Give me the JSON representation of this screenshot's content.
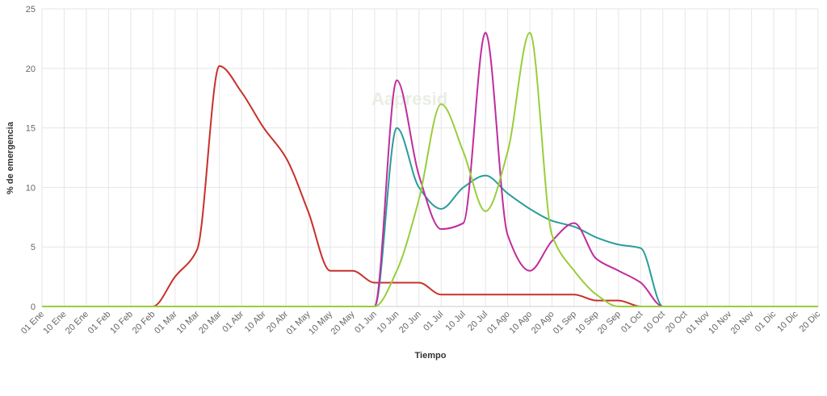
{
  "chart_data": {
    "type": "line",
    "x_label": "Tiempo",
    "y_label": "% de emergencia",
    "watermark": "Aapresid",
    "categories": [
      "01 Ene",
      "10 Ene",
      "20 Ene",
      "01 Feb",
      "10 Feb",
      "20 Feb",
      "01 Mar",
      "10 Mar",
      "20 Mar",
      "01 Abr",
      "10 Abr",
      "20 Abr",
      "01 May",
      "10 May",
      "20 May",
      "01 Jun",
      "10 Jun",
      "20 Jun",
      "01 Jul",
      "10 Jul",
      "20 Jul",
      "01 Ago",
      "10 Ago",
      "20 Ago",
      "01 Sep",
      "10 Sep",
      "20 Sep",
      "01 Oct",
      "10 Oct",
      "20 Oct",
      "01 Nov",
      "10 Nov",
      "20 Nov",
      "01 Dic",
      "10 Dic",
      "20 Dic"
    ],
    "series": [
      {
        "color": "#c8302a",
        "values": [
          0,
          0,
          0,
          0,
          0,
          0,
          2.5,
          4.8,
          20.2,
          18,
          15,
          12.5,
          8,
          3,
          3,
          2,
          2,
          2,
          1,
          1,
          1,
          1,
          1,
          1,
          1,
          0.5,
          0.5,
          0,
          0,
          0,
          0,
          0,
          0,
          0,
          0,
          0
        ]
      },
      {
        "color": "#2a9d9a",
        "values": [
          0,
          0,
          0,
          0,
          0,
          0,
          0,
          0,
          0,
          0,
          0,
          0,
          0,
          0,
          0,
          0,
          15,
          10,
          8.2,
          10,
          11,
          9.5,
          8.2,
          7.2,
          6.7,
          5.8,
          5.2,
          4.9,
          0,
          0,
          0,
          0,
          0,
          0,
          0,
          0
        ]
      },
      {
        "color": "#c02c9c",
        "values": [
          0,
          0,
          0,
          0,
          0,
          0,
          0,
          0,
          0,
          0,
          0,
          0,
          0,
          0,
          0,
          0,
          19,
          11,
          6.5,
          7,
          23,
          6,
          3,
          5.5,
          7,
          4,
          3,
          2,
          0,
          0,
          0,
          0,
          0,
          0,
          0,
          0
        ]
      },
      {
        "color": "#9acd3c",
        "values": [
          0,
          0,
          0,
          0,
          0,
          0,
          0,
          0,
          0,
          0,
          0,
          0,
          0,
          0,
          0,
          0,
          3,
          9,
          17,
          13,
          8,
          13,
          23,
          6,
          3,
          1,
          0,
          0,
          0,
          0,
          0,
          0,
          0,
          0,
          0,
          0
        ]
      }
    ],
    "ylim": [
      0,
      25
    ],
    "yticks": [
      0,
      5,
      10,
      15,
      20,
      25
    ],
    "grid": true
  }
}
